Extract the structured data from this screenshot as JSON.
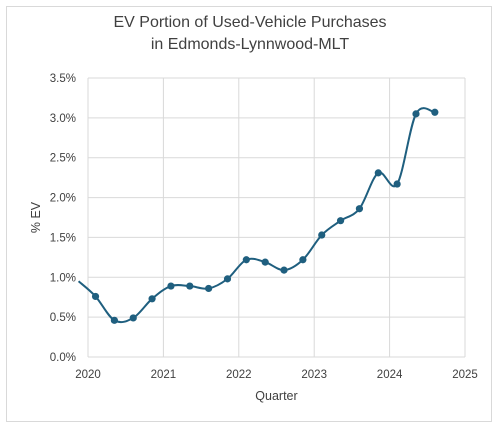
{
  "chart_data": {
    "type": "line",
    "title_line1": "EV Portion of Used-Vehicle Purchases",
    "title_line2": "in Edmonds-Lynnwood-MLT",
    "xlabel": "Quarter",
    "ylabel": "% EV",
    "xlim": [
      2020,
      2025
    ],
    "ylim": [
      0,
      3.5
    ],
    "x_ticks": [
      2020,
      2021,
      2022,
      2023,
      2024,
      2025
    ],
    "y_ticks": [
      "0.0%",
      "0.5%",
      "1.0%",
      "1.5%",
      "2.0%",
      "2.5%",
      "3.0%",
      "3.5%"
    ],
    "y_tick_values": [
      0,
      0.5,
      1.0,
      1.5,
      2.0,
      2.5,
      3.0,
      3.5
    ],
    "grid": "horizontal",
    "line_color": "#1f5f7f",
    "points": [
      {
        "x": 2019.875,
        "y": 0.95,
        "marker": false
      },
      {
        "x": 2020.1,
        "y": 0.76,
        "marker": true
      },
      {
        "x": 2020.35,
        "y": 0.46,
        "marker": true
      },
      {
        "x": 2020.6,
        "y": 0.49,
        "marker": true
      },
      {
        "x": 2020.85,
        "y": 0.73,
        "marker": true
      },
      {
        "x": 2021.1,
        "y": 0.89,
        "marker": true
      },
      {
        "x": 2021.35,
        "y": 0.89,
        "marker": true
      },
      {
        "x": 2021.6,
        "y": 0.86,
        "marker": true
      },
      {
        "x": 2021.85,
        "y": 0.98,
        "marker": true
      },
      {
        "x": 2022.1,
        "y": 1.22,
        "marker": true
      },
      {
        "x": 2022.35,
        "y": 1.19,
        "marker": true
      },
      {
        "x": 2022.6,
        "y": 1.09,
        "marker": true
      },
      {
        "x": 2022.85,
        "y": 1.22,
        "marker": true
      },
      {
        "x": 2023.1,
        "y": 1.53,
        "marker": true
      },
      {
        "x": 2023.35,
        "y": 1.71,
        "marker": true
      },
      {
        "x": 2023.6,
        "y": 1.86,
        "marker": true
      },
      {
        "x": 2023.85,
        "y": 2.31,
        "marker": true
      },
      {
        "x": 2024.1,
        "y": 2.17,
        "marker": true
      },
      {
        "x": 2024.35,
        "y": 3.05,
        "marker": true
      },
      {
        "x": 2024.6,
        "y": 3.07,
        "marker": true
      }
    ]
  }
}
